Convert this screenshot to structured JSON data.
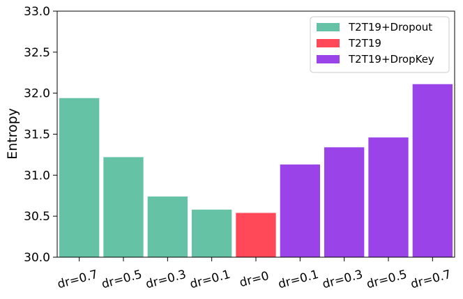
{
  "chart_data": {
    "type": "bar",
    "title": "",
    "xlabel": "",
    "ylabel": "Entropy",
    "categories": [
      "dr=0.7",
      "dr=0.5",
      "dr=0.3",
      "dr=0.1",
      "dr=0",
      "dr=0.1",
      "dr=0.3",
      "dr=0.5",
      "dr=0.7"
    ],
    "values": [
      31.94,
      31.22,
      30.74,
      30.58,
      30.54,
      31.13,
      31.34,
      31.46,
      32.11
    ],
    "bar_series": [
      0,
      0,
      0,
      0,
      1,
      2,
      2,
      2,
      2
    ],
    "series": [
      {
        "name": "T2T19+Dropout",
        "color": "#66c2a5"
      },
      {
        "name": "T2T19",
        "color": "#ff4858"
      },
      {
        "name": "T2T19+DropKey",
        "color": "#9943e8"
      }
    ],
    "ylim": [
      30.0,
      33.0
    ],
    "yticks": [
      30.0,
      30.5,
      31.0,
      31.5,
      32.0,
      32.5,
      33.0
    ],
    "ytick_labels": [
      "30.0",
      "30.5",
      "31.0",
      "31.5",
      "32.0",
      "32.5",
      "33.0"
    ],
    "grid": false,
    "legend_position": "top-right"
  }
}
